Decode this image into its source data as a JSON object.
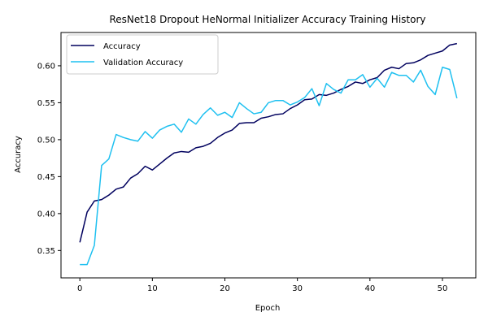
{
  "chart_data": {
    "type": "line",
    "title": "ResNet18 Dropout HeNormal Initializer Accuracy Training History",
    "xlabel": "Epoch",
    "ylabel": "Accuracy",
    "xlim": [
      -2.6,
      54.6
    ],
    "ylim": [
      0.313,
      0.645
    ],
    "xticks": [
      0,
      10,
      20,
      30,
      40,
      50
    ],
    "yticks": [
      0.35,
      0.4,
      0.45,
      0.5,
      0.55,
      0.6
    ],
    "ytick_labels": [
      "0.35",
      "0.40",
      "0.45",
      "0.50",
      "0.55",
      "0.60"
    ],
    "grid": false,
    "legend_position": "top-left",
    "x": [
      0,
      1,
      2,
      3,
      4,
      5,
      6,
      7,
      8,
      9,
      10,
      11,
      12,
      13,
      14,
      15,
      16,
      17,
      18,
      19,
      20,
      21,
      22,
      23,
      24,
      25,
      26,
      27,
      28,
      29,
      30,
      31,
      32,
      33,
      34,
      35,
      36,
      37,
      38,
      39,
      40,
      41,
      42,
      43,
      44,
      45,
      46,
      47,
      48,
      49,
      50,
      51,
      52
    ],
    "series": [
      {
        "name": "Accuracy",
        "color": "#00005e",
        "values": [
          0.361,
          0.402,
          0.417,
          0.419,
          0.425,
          0.433,
          0.436,
          0.448,
          0.454,
          0.464,
          0.459,
          0.467,
          0.475,
          0.482,
          0.484,
          0.483,
          0.489,
          0.491,
          0.495,
          0.503,
          0.509,
          0.513,
          0.522,
          0.523,
          0.523,
          0.529,
          0.531,
          0.534,
          0.535,
          0.542,
          0.547,
          0.554,
          0.555,
          0.561,
          0.56,
          0.563,
          0.568,
          0.572,
          0.578,
          0.576,
          0.581,
          0.584,
          0.594,
          0.598,
          0.596,
          0.603,
          0.604,
          0.608,
          0.614,
          0.617,
          0.62,
          0.628,
          0.63
        ]
      },
      {
        "name": "Validation Accuracy",
        "color": "#1ec0f0",
        "values": [
          0.331,
          0.331,
          0.357,
          0.465,
          0.474,
          0.507,
          0.503,
          0.5,
          0.498,
          0.511,
          0.502,
          0.513,
          0.518,
          0.521,
          0.51,
          0.528,
          0.521,
          0.534,
          0.543,
          0.533,
          0.537,
          0.53,
          0.55,
          0.542,
          0.535,
          0.537,
          0.55,
          0.553,
          0.553,
          0.547,
          0.551,
          0.557,
          0.569,
          0.546,
          0.576,
          0.568,
          0.563,
          0.581,
          0.581,
          0.588,
          0.571,
          0.583,
          0.571,
          0.591,
          0.587,
          0.587,
          0.578,
          0.594,
          0.572,
          0.561,
          0.598,
          0.595,
          0.556
        ]
      }
    ]
  }
}
